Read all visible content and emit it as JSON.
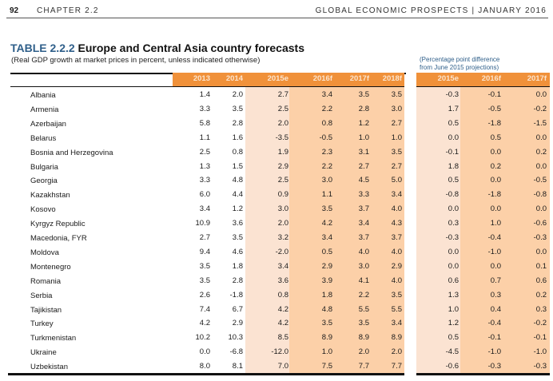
{
  "header": {
    "page_number": "92",
    "chapter": "CHAPTER 2.2",
    "publication": "GLOBAL ECONOMIC PROSPECTS | JANUARY 2016"
  },
  "table": {
    "number": "TABLE 2.2.2",
    "title": "Europe and Central Asia country forecasts",
    "subtitle": "(Real GDP growth at market prices in percent, unless indicated otherwise)",
    "diff_note_line1": "(Percentage  point difference",
    "diff_note_line2": "from June 2015 projections)",
    "columns": [
      "2013",
      "2014",
      "2015e",
      "2016f",
      "2017f",
      "2018f"
    ],
    "diff_columns": [
      "2015e",
      "2016f",
      "2017f"
    ],
    "colors": {
      "header": "#f0913a",
      "header_text": "#fce4cc",
      "shade_light": "#fbe3d2",
      "shade_dark": "#fcd0a8",
      "title_accent": "#2f5f8a"
    },
    "rows": [
      {
        "country": "Albania",
        "values": [
          "1.4",
          "2.0",
          "2.7",
          "3.4",
          "3.5",
          "3.5"
        ],
        "diff": [
          "-0.3",
          "-0.1",
          "0.0"
        ]
      },
      {
        "country": "Armenia",
        "values": [
          "3.3",
          "3.5",
          "2.5",
          "2.2",
          "2.8",
          "3.0"
        ],
        "diff": [
          "1.7",
          "-0.5",
          "-0.2"
        ]
      },
      {
        "country": "Azerbaijan",
        "values": [
          "5.8",
          "2.8",
          "2.0",
          "0.8",
          "1.2",
          "2.7"
        ],
        "diff": [
          "0.5",
          "-1.8",
          "-1.5"
        ]
      },
      {
        "country": "Belarus",
        "values": [
          "1.1",
          "1.6",
          "-3.5",
          "-0.5",
          "1.0",
          "1.0"
        ],
        "diff": [
          "0.0",
          "0.5",
          "0.0"
        ]
      },
      {
        "country": "Bosnia and Herzegovina",
        "values": [
          "2.5",
          "0.8",
          "1.9",
          "2.3",
          "3.1",
          "3.5"
        ],
        "diff": [
          "-0.1",
          "0.0",
          "0.2"
        ]
      },
      {
        "country": "Bulgaria",
        "values": [
          "1.3",
          "1.5",
          "2.9",
          "2.2",
          "2.7",
          "2.7"
        ],
        "diff": [
          "1.8",
          "0.2",
          "0.0"
        ]
      },
      {
        "country": "Georgia",
        "values": [
          "3.3",
          "4.8",
          "2.5",
          "3.0",
          "4.5",
          "5.0"
        ],
        "diff": [
          "0.5",
          "0.0",
          "-0.5"
        ]
      },
      {
        "country": "Kazakhstan",
        "values": [
          "6.0",
          "4.4",
          "0.9",
          "1.1",
          "3.3",
          "3.4"
        ],
        "diff": [
          "-0.8",
          "-1.8",
          "-0.8"
        ]
      },
      {
        "country": "Kosovo",
        "values": [
          "3.4",
          "1.2",
          "3.0",
          "3.5",
          "3.7",
          "4.0"
        ],
        "diff": [
          "0.0",
          "0.0",
          "0.0"
        ]
      },
      {
        "country": "Kyrgyz Republic",
        "values": [
          "10.9",
          "3.6",
          "2.0",
          "4.2",
          "3.4",
          "4.3"
        ],
        "diff": [
          "0.3",
          "1.0",
          "-0.6"
        ]
      },
      {
        "country": "Macedonia, FYR",
        "values": [
          "2.7",
          "3.5",
          "3.2",
          "3.4",
          "3.7",
          "3.7"
        ],
        "diff": [
          "-0.3",
          "-0.4",
          "-0.3"
        ]
      },
      {
        "country": "Moldova",
        "values": [
          "9.4",
          "4.6",
          "-2.0",
          "0.5",
          "4.0",
          "4.0"
        ],
        "diff": [
          "0.0",
          "-1.0",
          "0.0"
        ]
      },
      {
        "country": "Montenegro",
        "values": [
          "3.5",
          "1.8",
          "3.4",
          "2.9",
          "3.0",
          "2.9"
        ],
        "diff": [
          "0.0",
          "0.0",
          "0.1"
        ]
      },
      {
        "country": "Romania",
        "values": [
          "3.5",
          "2.8",
          "3.6",
          "3.9",
          "4.1",
          "4.0"
        ],
        "diff": [
          "0.6",
          "0.7",
          "0.6"
        ]
      },
      {
        "country": "Serbia",
        "values": [
          "2.6",
          "-1.8",
          "0.8",
          "1.8",
          "2.2",
          "3.5"
        ],
        "diff": [
          "1.3",
          "0.3",
          "0.2"
        ]
      },
      {
        "country": "Tajikistan",
        "values": [
          "7.4",
          "6.7",
          "4.2",
          "4.8",
          "5.5",
          "5.5"
        ],
        "diff": [
          "1.0",
          "0.4",
          "0.3"
        ]
      },
      {
        "country": "Turkey",
        "values": [
          "4.2",
          "2.9",
          "4.2",
          "3.5",
          "3.5",
          "3.4"
        ],
        "diff": [
          "1.2",
          "-0.4",
          "-0.2"
        ]
      },
      {
        "country": "Turkmenistan",
        "values": [
          "10.2",
          "10.3",
          "8.5",
          "8.9",
          "8.9",
          "8.9"
        ],
        "diff": [
          "0.5",
          "-0.1",
          "-0.1"
        ]
      },
      {
        "country": "Ukraine",
        "values": [
          "0.0",
          "-6.8",
          "-12.0",
          "1.0",
          "2.0",
          "2.0"
        ],
        "diff": [
          "-4.5",
          "-1.0",
          "-1.0"
        ]
      },
      {
        "country": "Uzbekistan",
        "values": [
          "8.0",
          "8.1",
          "7.0",
          "7.5",
          "7.7",
          "7.7"
        ],
        "diff": [
          "-0.6",
          "-0.3",
          "-0.3"
        ]
      }
    ]
  }
}
